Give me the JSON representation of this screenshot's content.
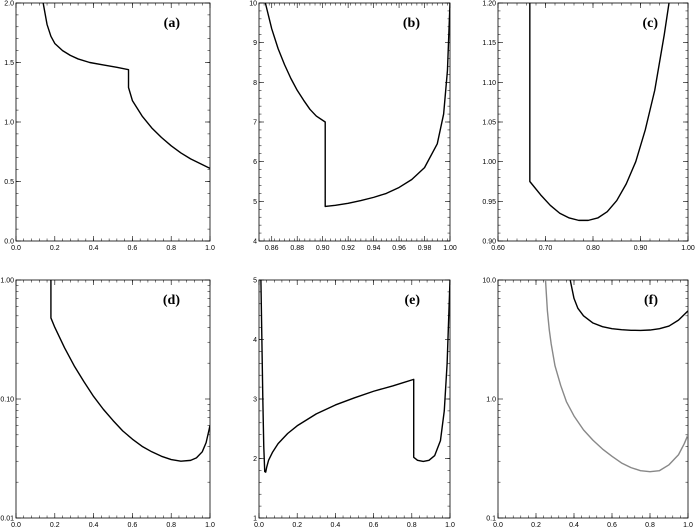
{
  "colors": {
    "background": "#ffffff",
    "axes": "#000000",
    "curve": "#000000",
    "curve_gray": "#888888"
  },
  "chart_data": [
    {
      "type": "line",
      "panel_label": "(a)",
      "xlim": [
        0,
        1
      ],
      "ylim": [
        0,
        2
      ],
      "xscale": "linear",
      "yscale": "linear",
      "xticks": [
        0.0,
        0.2,
        0.4,
        0.6,
        0.8,
        1.0
      ],
      "xtick_labels": [
        "0.0",
        "0.2",
        "0.4",
        "0.6",
        "0.8",
        "1.0"
      ],
      "yticks": [
        0.0,
        0.5,
        1.0,
        1.5,
        2.0
      ],
      "ytick_labels": [
        "0.0",
        "0.5",
        "1.0",
        "1.5",
        "2.0"
      ],
      "grid": false,
      "series": [
        {
          "color": "curve",
          "x": [
            0.14,
            0.16,
            0.18,
            0.2,
            0.24,
            0.28,
            0.32,
            0.38,
            0.45,
            0.52,
            0.58,
            0.58,
            0.6,
            0.65,
            0.7,
            0.75,
            0.8,
            0.85,
            0.9,
            0.95,
            1.0
          ],
          "y": [
            2.0,
            1.82,
            1.72,
            1.66,
            1.6,
            1.56,
            1.53,
            1.5,
            1.48,
            1.46,
            1.44,
            1.29,
            1.18,
            1.05,
            0.95,
            0.87,
            0.8,
            0.74,
            0.69,
            0.65,
            0.61
          ]
        }
      ]
    },
    {
      "type": "line",
      "panel_label": "(b)",
      "xlim": [
        0.85,
        1.0
      ],
      "ylim": [
        4,
        10
      ],
      "xscale": "linear",
      "yscale": "linear",
      "xticks": [
        0.86,
        0.88,
        0.9,
        0.92,
        0.94,
        0.96,
        0.98,
        1.0
      ],
      "xtick_labels": [
        "0.86",
        "0.88",
        "0.90",
        "0.92",
        "0.94",
        "0.96",
        "0.98",
        "1.00"
      ],
      "yticks": [
        4,
        5,
        6,
        7,
        8,
        9,
        10
      ],
      "ytick_labels": [
        "4",
        "5",
        "6",
        "7",
        "8",
        "9",
        "10"
      ],
      "grid": false,
      "series": [
        {
          "color": "curve",
          "x": [
            0.855,
            0.86,
            0.865,
            0.87,
            0.875,
            0.88,
            0.885,
            0.89,
            0.895,
            0.902,
            0.902,
            0.91,
            0.92,
            0.93,
            0.94,
            0.95,
            0.96,
            0.97,
            0.98,
            0.99,
            0.995,
            0.998,
            1.0
          ],
          "y": [
            10.0,
            9.35,
            8.85,
            8.45,
            8.1,
            7.8,
            7.55,
            7.32,
            7.15,
            7.0,
            4.87,
            4.9,
            4.95,
            5.02,
            5.1,
            5.2,
            5.35,
            5.55,
            5.85,
            6.45,
            7.2,
            8.3,
            10.0
          ]
        }
      ]
    },
    {
      "type": "line",
      "panel_label": "(c)",
      "xlim": [
        0.6,
        1.0
      ],
      "ylim": [
        0.9,
        1.2
      ],
      "xscale": "linear",
      "yscale": "linear",
      "xticks": [
        0.6,
        0.7,
        0.8,
        0.9,
        1.0
      ],
      "xtick_labels": [
        "0.60",
        "0.70",
        "0.80",
        "0.90",
        "1.00"
      ],
      "yticks": [
        0.9,
        0.95,
        1.0,
        1.05,
        1.1,
        1.15,
        1.2
      ],
      "ytick_labels": [
        "0.90",
        "0.95",
        "1.00",
        "1.05",
        "1.10",
        "1.15",
        "1.20"
      ],
      "grid": false,
      "series": [
        {
          "color": "curve",
          "x": [
            0.667,
            0.667,
            0.69,
            0.71,
            0.73,
            0.75,
            0.77,
            0.79,
            0.81,
            0.83,
            0.85,
            0.87,
            0.89,
            0.91,
            0.93,
            0.95,
            0.96
          ],
          "y": [
            1.2,
            0.975,
            0.958,
            0.945,
            0.935,
            0.929,
            0.926,
            0.926,
            0.929,
            0.937,
            0.951,
            0.972,
            1.0,
            1.04,
            1.09,
            1.16,
            1.2
          ]
        }
      ]
    },
    {
      "type": "line",
      "panel_label": "(d)",
      "xlim": [
        0,
        1
      ],
      "ylim": [
        0.01,
        1.0
      ],
      "xscale": "linear",
      "yscale": "log",
      "xticks": [
        0.0,
        0.2,
        0.4,
        0.6,
        0.8,
        1.0
      ],
      "xtick_labels": [
        "0.0",
        "0.2",
        "0.4",
        "0.6",
        "0.8",
        "1.0"
      ],
      "yticks": [
        0.01,
        0.1,
        1.0
      ],
      "ytick_labels": [
        "0.01",
        "0.10",
        "1.00"
      ],
      "grid": false,
      "series": [
        {
          "color": "curve",
          "x": [
            0.18,
            0.18,
            0.2,
            0.25,
            0.3,
            0.35,
            0.4,
            0.45,
            0.5,
            0.55,
            0.6,
            0.65,
            0.7,
            0.75,
            0.8,
            0.85,
            0.9,
            0.93,
            0.96,
            0.98,
            0.995,
            1.0
          ],
          "y": [
            1.0,
            0.48,
            0.4,
            0.27,
            0.19,
            0.14,
            0.105,
            0.082,
            0.066,
            0.054,
            0.046,
            0.04,
            0.036,
            0.033,
            0.031,
            0.03,
            0.0305,
            0.032,
            0.036,
            0.043,
            0.055,
            0.06
          ]
        }
      ]
    },
    {
      "type": "line",
      "panel_label": "(e)",
      "xlim": [
        0,
        1
      ],
      "ylim": [
        1,
        5
      ],
      "xscale": "linear",
      "yscale": "linear",
      "xticks": [
        0.0,
        0.2,
        0.4,
        0.6,
        0.8,
        1.0
      ],
      "xtick_labels": [
        "0.0",
        "0.2",
        "0.4",
        "0.6",
        "0.8",
        "1.0"
      ],
      "yticks": [
        1,
        2,
        3,
        4,
        5
      ],
      "ytick_labels": [
        "1",
        "2",
        "3",
        "4",
        "5"
      ],
      "grid": false,
      "series": [
        {
          "color": "curve",
          "x": [
            0.01,
            0.015,
            0.02,
            0.025,
            0.03,
            0.035,
            0.04,
            0.05,
            0.07,
            0.1,
            0.15,
            0.2,
            0.3,
            0.4,
            0.5,
            0.6,
            0.7,
            0.81,
            0.81,
            0.83,
            0.86,
            0.89,
            0.92,
            0.95,
            0.97,
            0.985,
            1.0
          ],
          "y": [
            5.0,
            4.0,
            3.0,
            2.2,
            1.78,
            1.77,
            1.85,
            1.97,
            2.1,
            2.25,
            2.42,
            2.55,
            2.75,
            2.9,
            3.02,
            3.13,
            3.22,
            3.33,
            2.02,
            1.97,
            1.95,
            1.97,
            2.05,
            2.3,
            2.8,
            3.6,
            5.0
          ]
        }
      ]
    },
    {
      "type": "line",
      "panel_label": "(f)",
      "xlim": [
        0,
        1
      ],
      "ylim": [
        0.1,
        10.0
      ],
      "xscale": "linear",
      "yscale": "log",
      "xticks": [
        0.0,
        0.2,
        0.4,
        0.6,
        0.8,
        1.0
      ],
      "xtick_labels": [
        "0.0",
        "0.2",
        "0.4",
        "0.6",
        "0.8",
        "1.0"
      ],
      "yticks": [
        0.1,
        1.0,
        10.0
      ],
      "ytick_labels": [
        "0.1",
        "1.0",
        "10.0"
      ],
      "grid": false,
      "series": [
        {
          "color": "curve",
          "x": [
            0.38,
            0.4,
            0.42,
            0.45,
            0.5,
            0.55,
            0.6,
            0.65,
            0.7,
            0.75,
            0.8,
            0.85,
            0.9,
            0.95,
            1.0
          ],
          "y": [
            10.0,
            7.0,
            5.8,
            5.0,
            4.35,
            4.05,
            3.9,
            3.82,
            3.78,
            3.77,
            3.8,
            3.9,
            4.1,
            4.6,
            5.5
          ]
        },
        {
          "color": "curve_gray",
          "x": [
            0.25,
            0.26,
            0.27,
            0.28,
            0.3,
            0.33,
            0.36,
            0.4,
            0.45,
            0.5,
            0.55,
            0.6,
            0.65,
            0.7,
            0.75,
            0.8,
            0.85,
            0.9,
            0.95,
            0.98,
            1.0
          ],
          "y": [
            10.0,
            5.5,
            3.8,
            2.9,
            1.9,
            1.3,
            0.95,
            0.72,
            0.55,
            0.45,
            0.38,
            0.33,
            0.29,
            0.265,
            0.25,
            0.245,
            0.25,
            0.28,
            0.34,
            0.42,
            0.5
          ]
        }
      ]
    }
  ]
}
